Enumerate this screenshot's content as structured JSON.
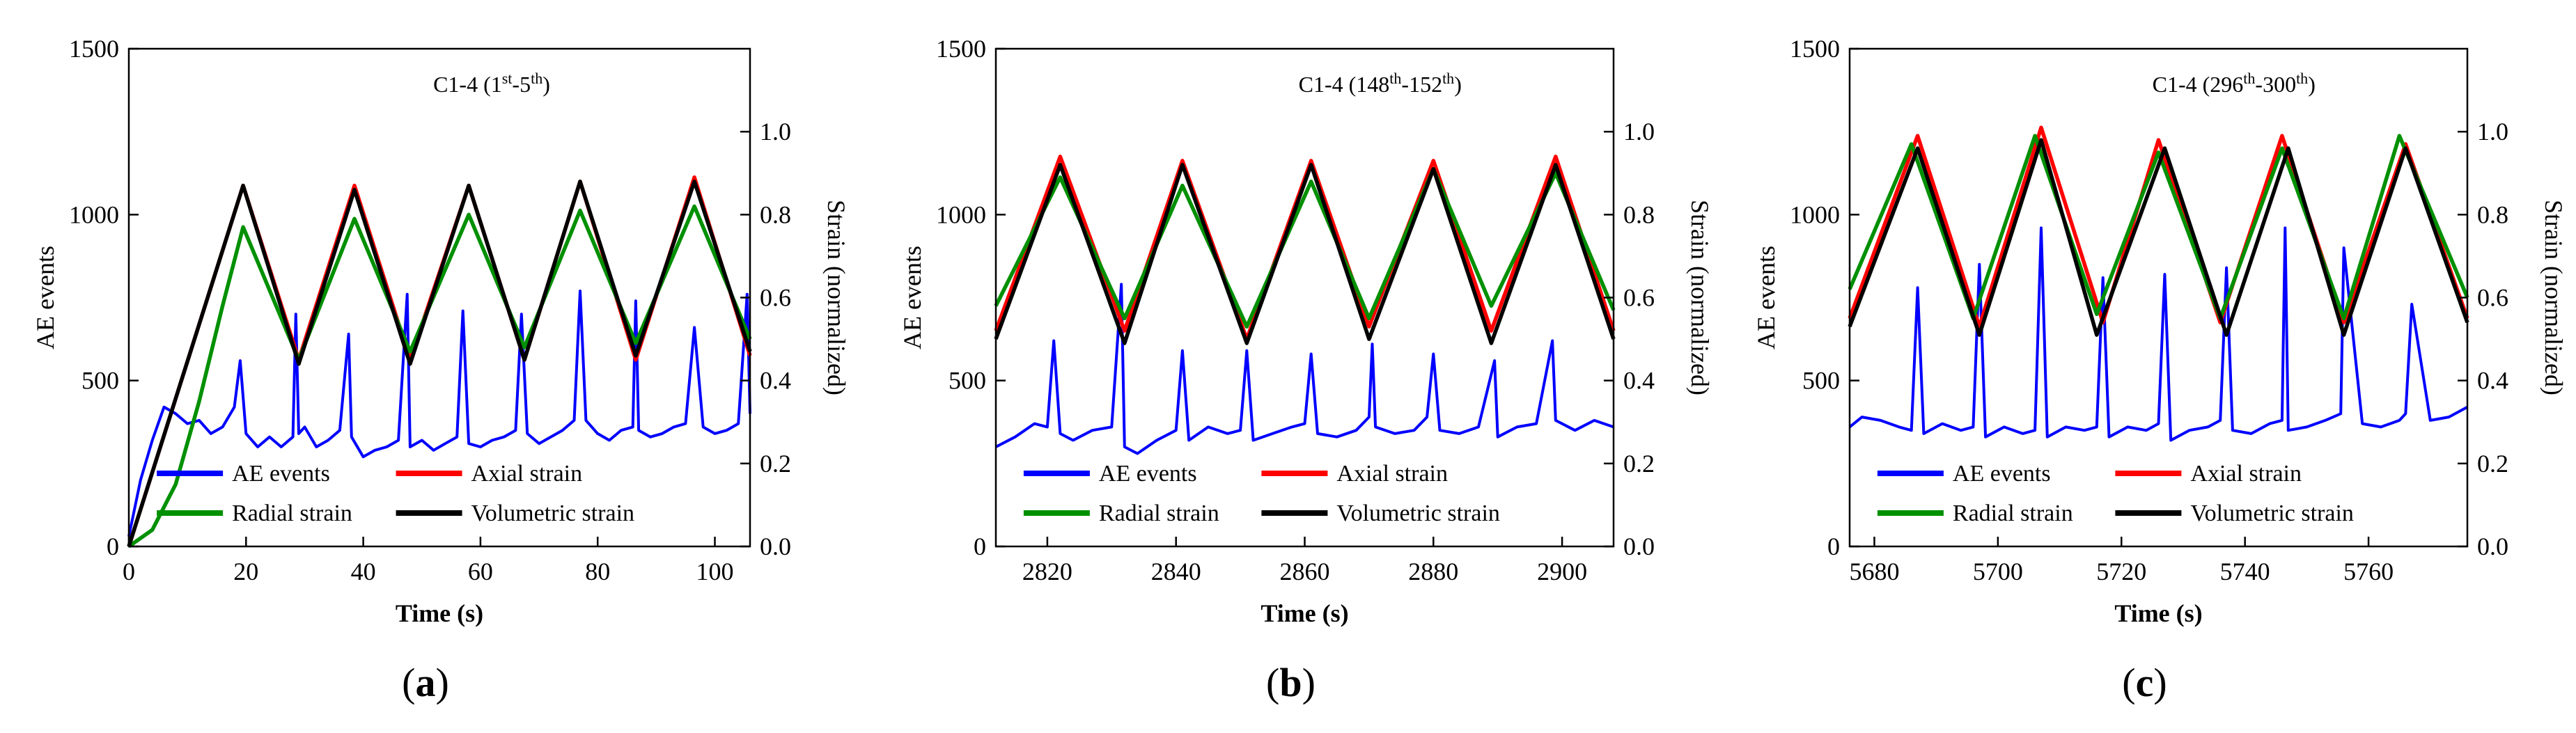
{
  "chart_data": [
    {
      "type": "line",
      "panel_label": "(a)",
      "title_base": "C1-4 (1",
      "title_sup1": "st",
      "title_mid": "-5",
      "title_sup2": "th",
      "title_end": ")",
      "xlabel": "Time (s)",
      "ylabel": "AE events",
      "y2label": "Strain (normalized)",
      "xlim": [
        0,
        106
      ],
      "ylim": [
        0,
        1500
      ],
      "y2lim": [
        0,
        1.2
      ],
      "xticks": [
        0,
        20,
        40,
        60,
        80,
        100
      ],
      "yticks": [
        0,
        500,
        1000,
        1500
      ],
      "y2ticks": [
        "0.0",
        "0.2",
        "0.4",
        "0.6",
        "0.8",
        "1.0"
      ],
      "series": [
        {
          "name": "AE events",
          "color": "#0000ff",
          "axis": "left",
          "x": [
            0,
            2,
            4,
            6,
            8,
            10,
            12,
            14,
            16,
            18,
            19,
            20,
            22,
            24,
            26,
            28,
            28.5,
            29,
            30,
            32,
            34,
            36,
            37.5,
            38,
            40,
            42,
            44,
            46,
            47.5,
            48,
            50,
            52,
            54,
            56,
            57,
            58,
            60,
            62,
            64,
            66,
            67,
            68,
            70,
            72,
            74,
            76,
            77,
            78,
            80,
            82,
            84,
            86,
            86.5,
            87,
            89,
            91,
            93,
            95,
            96.5,
            98,
            100,
            102,
            104,
            105.5,
            106
          ],
          "values": [
            30,
            200,
            320,
            420,
            400,
            370,
            380,
            340,
            360,
            420,
            560,
            340,
            300,
            330,
            300,
            330,
            700,
            340,
            360,
            300,
            320,
            350,
            640,
            330,
            270,
            290,
            300,
            320,
            760,
            300,
            320,
            290,
            310,
            330,
            710,
            310,
            300,
            320,
            330,
            350,
            700,
            340,
            310,
            330,
            350,
            380,
            770,
            380,
            340,
            320,
            350,
            360,
            740,
            350,
            330,
            340,
            360,
            370,
            660,
            360,
            340,
            350,
            370,
            760,
            400
          ]
        },
        {
          "name": "Axial strain",
          "color": "#ff0000",
          "axis": "right",
          "x": [
            0,
            19.5,
            29,
            38.5,
            48,
            58,
            67.5,
            77,
            86.5,
            96.5,
            106
          ],
          "values": [
            0.0,
            0.87,
            0.45,
            0.87,
            0.45,
            0.87,
            0.45,
            0.88,
            0.45,
            0.89,
            0.46
          ]
        },
        {
          "name": "Radial strain",
          "color": "#009000",
          "axis": "right",
          "x": [
            0,
            4,
            8,
            12,
            16,
            19.5,
            29,
            38.5,
            48,
            58,
            67.5,
            77,
            86.5,
            96.5,
            106
          ],
          "values": [
            0.0,
            0.04,
            0.15,
            0.35,
            0.58,
            0.77,
            0.45,
            0.79,
            0.47,
            0.8,
            0.48,
            0.81,
            0.49,
            0.82,
            0.5
          ]
        },
        {
          "name": "Volumetric strain",
          "color": "#000000",
          "axis": "right",
          "x": [
            0,
            19.5,
            29,
            38.5,
            48,
            58,
            67.5,
            77,
            86.5,
            96.5,
            106
          ],
          "values": [
            0.0,
            0.87,
            0.44,
            0.86,
            0.44,
            0.87,
            0.45,
            0.88,
            0.46,
            0.88,
            0.47
          ]
        }
      ]
    },
    {
      "type": "line",
      "panel_label": "(b)",
      "title_base": "C1-4 (148",
      "title_sup1": "th",
      "title_mid": "-152",
      "title_sup2": "th",
      "title_end": ")",
      "xlabel": "Time (s)",
      "ylabel": "AE events",
      "y2label": "Strain (normalized)",
      "xlim": [
        2812,
        2908
      ],
      "ylim": [
        0,
        1500
      ],
      "y2lim": [
        0,
        1.2
      ],
      "xticks": [
        2820,
        2840,
        2860,
        2880,
        2900
      ],
      "yticks": [
        0,
        500,
        1000,
        1500
      ],
      "y2ticks": [
        "0.0",
        "0.2",
        "0.4",
        "0.6",
        "0.8",
        "1.0"
      ],
      "series": [
        {
          "name": "AE events",
          "color": "#0000ff",
          "axis": "left",
          "x": [
            2812,
            2815,
            2818,
            2820,
            2821,
            2822,
            2824,
            2827,
            2830,
            2831.5,
            2832,
            2834,
            2837,
            2840,
            2841,
            2842,
            2845,
            2848,
            2850,
            2851,
            2852,
            2855,
            2858,
            2860,
            2861,
            2862,
            2865,
            2868,
            2870,
            2870.5,
            2871,
            2874,
            2877,
            2879,
            2880,
            2881,
            2884,
            2887,
            2889.5,
            2890,
            2893,
            2896,
            2898.5,
            2899,
            2902,
            2905,
            2908
          ],
          "values": [
            300,
            330,
            370,
            360,
            620,
            340,
            320,
            350,
            360,
            790,
            300,
            280,
            320,
            350,
            590,
            320,
            360,
            340,
            350,
            590,
            320,
            340,
            360,
            370,
            580,
            340,
            330,
            350,
            390,
            610,
            360,
            340,
            350,
            390,
            580,
            350,
            340,
            360,
            560,
            330,
            360,
            370,
            620,
            380,
            350,
            380,
            360
          ]
        },
        {
          "name": "Axial strain",
          "color": "#ff0000",
          "axis": "right",
          "x": [
            2812,
            2822,
            2832,
            2841,
            2851,
            2861,
            2870,
            2880,
            2889,
            2899,
            2908
          ],
          "values": [
            0.52,
            0.94,
            0.52,
            0.93,
            0.5,
            0.93,
            0.53,
            0.93,
            0.52,
            0.94,
            0.52
          ]
        },
        {
          "name": "Radial strain",
          "color": "#009000",
          "axis": "right",
          "x": [
            2812,
            2822,
            2832,
            2841,
            2851,
            2861,
            2870,
            2880,
            2889,
            2899,
            2908
          ],
          "values": [
            0.58,
            0.89,
            0.55,
            0.87,
            0.53,
            0.88,
            0.55,
            0.91,
            0.58,
            0.9,
            0.57
          ]
        },
        {
          "name": "Volumetric strain",
          "color": "#000000",
          "axis": "right",
          "x": [
            2812,
            2822,
            2832,
            2841,
            2851,
            2861,
            2870,
            2880,
            2889,
            2899,
            2908
          ],
          "values": [
            0.5,
            0.92,
            0.49,
            0.92,
            0.49,
            0.92,
            0.5,
            0.91,
            0.49,
            0.92,
            0.5
          ]
        }
      ]
    },
    {
      "type": "line",
      "panel_label": "(c)",
      "title_base": "C1-4 (296",
      "title_sup1": "th",
      "title_mid": "-300",
      "title_sup2": "th",
      "title_end": ")",
      "xlabel": "Time (s)",
      "ylabel": "AE events",
      "y2label": "Strain (normalized)",
      "xlim": [
        5676,
        5776
      ],
      "ylim": [
        0,
        1500
      ],
      "y2lim": [
        0,
        1.2
      ],
      "xticks": [
        5680,
        5700,
        5720,
        5740,
        5760
      ],
      "yticks": [
        0,
        500,
        1000,
        1500
      ],
      "y2ticks": [
        "0.0",
        "0.2",
        "0.4",
        "0.6",
        "0.8",
        "1.0"
      ],
      "series": [
        {
          "name": "AE events",
          "color": "#0000ff",
          "axis": "left",
          "x": [
            5676,
            5678,
            5681,
            5684,
            5686,
            5687,
            5688,
            5691,
            5694,
            5696,
            5697,
            5698,
            5701,
            5704,
            5706,
            5707,
            5708,
            5711,
            5714,
            5716,
            5717,
            5718,
            5721,
            5724,
            5726,
            5727,
            5728,
            5731,
            5734,
            5736,
            5737,
            5738,
            5741,
            5744,
            5746,
            5746.5,
            5747,
            5750,
            5753,
            5755.5,
            5756,
            5759,
            5762,
            5765,
            5766,
            5767,
            5770,
            5773,
            5776
          ],
          "values": [
            360,
            390,
            380,
            360,
            350,
            780,
            340,
            370,
            350,
            360,
            850,
            330,
            360,
            340,
            350,
            960,
            330,
            360,
            350,
            360,
            810,
            330,
            360,
            350,
            370,
            820,
            320,
            350,
            360,
            380,
            840,
            350,
            340,
            370,
            380,
            960,
            350,
            360,
            380,
            400,
            900,
            370,
            360,
            380,
            400,
            730,
            380,
            390,
            420
          ]
        },
        {
          "name": "Axial strain",
          "color": "#ff0000",
          "axis": "right",
          "x": [
            5676,
            5687,
            5697,
            5707,
            5717,
            5726,
            5736,
            5746,
            5756,
            5766,
            5776
          ],
          "values": [
            0.55,
            0.99,
            0.53,
            1.01,
            0.54,
            0.98,
            0.54,
            0.99,
            0.54,
            0.97,
            0.55
          ]
        },
        {
          "name": "Radial strain",
          "color": "#009000",
          "axis": "right",
          "x": [
            5676,
            5686,
            5696,
            5706,
            5716,
            5726,
            5736,
            5746,
            5756,
            5765,
            5776
          ],
          "values": [
            0.62,
            0.97,
            0.55,
            0.99,
            0.56,
            0.95,
            0.55,
            0.96,
            0.55,
            0.99,
            0.6
          ]
        },
        {
          "name": "Volumetric strain",
          "color": "#000000",
          "axis": "right",
          "x": [
            5676,
            5687,
            5697,
            5707,
            5716,
            5727,
            5737,
            5747,
            5756,
            5766,
            5776
          ],
          "values": [
            0.53,
            0.96,
            0.51,
            0.98,
            0.51,
            0.96,
            0.51,
            0.96,
            0.51,
            0.96,
            0.54
          ]
        }
      ]
    }
  ]
}
